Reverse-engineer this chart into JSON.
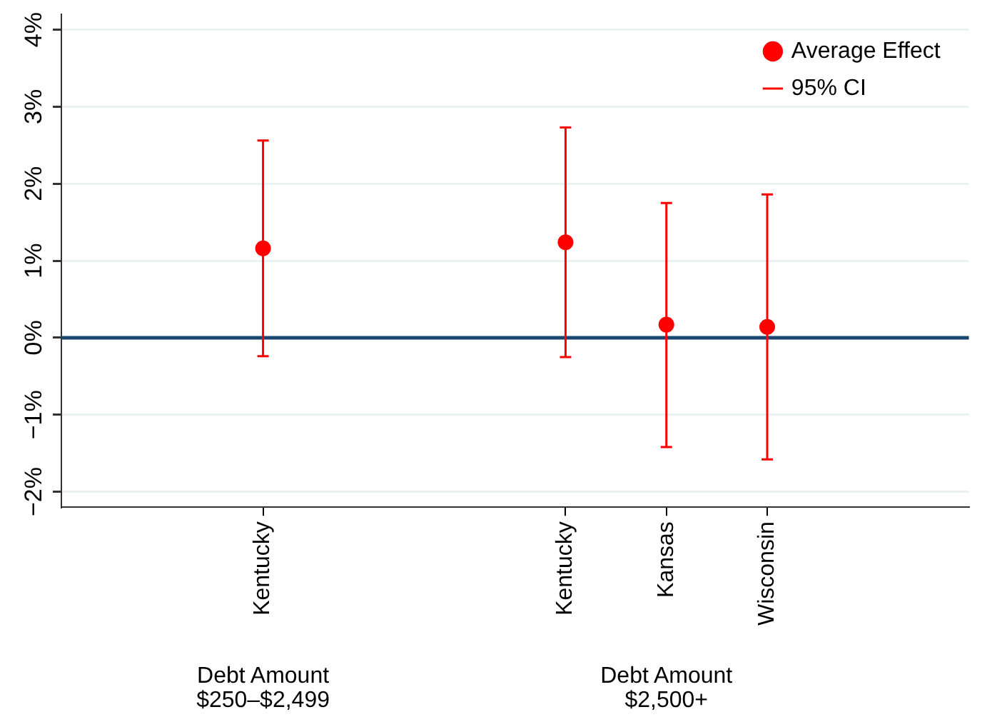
{
  "chart_data": {
    "type": "scatter",
    "categories": [
      null,
      null,
      "Kentucky",
      null,
      null,
      "Kentucky",
      "Kansas",
      "Wisconsin",
      null,
      null
    ],
    "series": [
      {
        "name": "Average Effect",
        "color": "#ff0000",
        "values": [
          null,
          null,
          1.16,
          null,
          null,
          1.24,
          0.17,
          0.14,
          null,
          null
        ],
        "errors": [
          null,
          null,
          [
            -0.24,
            2.56
          ],
          null,
          null,
          [
            -0.25,
            2.73
          ],
          [
            -1.42,
            1.75
          ],
          [
            -1.58,
            1.86
          ],
          null,
          null
        ]
      }
    ],
    "ylim": [
      -2.2,
      4.2
    ],
    "yticks": [
      {
        "value": -2,
        "label": "−2%"
      },
      {
        "value": -1,
        "label": "−1%"
      },
      {
        "value": 0,
        "label": "0%"
      },
      {
        "value": 1,
        "label": "1%"
      },
      {
        "value": 2,
        "label": "2%"
      },
      {
        "value": 3,
        "label": "3%"
      },
      {
        "value": 4,
        "label": "4%"
      }
    ],
    "ref_lines": [
      {
        "axis": "y",
        "value": 0,
        "color": "#1a476f"
      }
    ],
    "annotations": [
      "95% CI",
      "Debt Amount\n$250–$2,499",
      "Debt Amount\n$2,500+"
    ],
    "grid": "y",
    "legend": "top right",
    "marker": "circle"
  }
}
